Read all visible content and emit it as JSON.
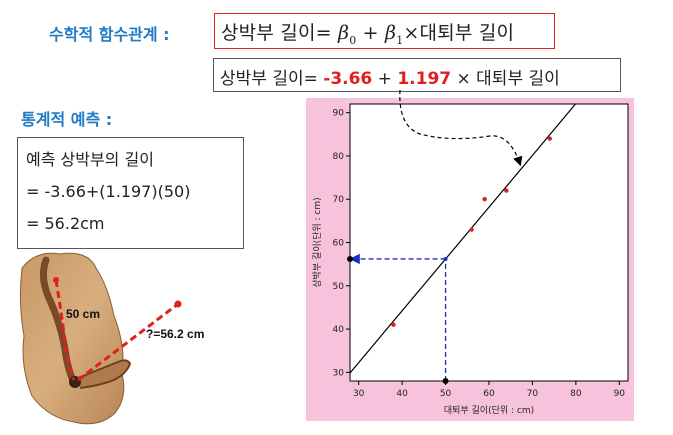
{
  "headings": {
    "functional": "수학적 함수관계 :",
    "statistical": "통계적 예측 :"
  },
  "formula": {
    "lhs": "상박부 길이",
    "eq": "=",
    "beta0": "β",
    "beta0_sub": "0",
    "plus": "+",
    "beta1": "β",
    "beta1_sub": "1",
    "times": "×",
    "rhs": "대퇴부 길이"
  },
  "estimate": {
    "lhs": "상박부 길이=",
    "intercept": "-3.66",
    "plus": "+",
    "slope": "1.197",
    "times": "×",
    "rhs": "대퇴부 길이"
  },
  "prediction": {
    "line1": "예측 상박부의 길이",
    "line2": "= -3.66+(1.197)(50)",
    "line3": "= 56.2cm"
  },
  "photo": {
    "femur_label": "50 cm",
    "humerus_label": "?=56.2 cm"
  },
  "colors": {
    "heading": "#1f7bc6",
    "highlight": "#e02020",
    "plot_bg": "#f7c2dc",
    "guide": "#1a2fbf"
  },
  "chart_data": {
    "type": "scatter",
    "xlabel": "대퇴부 길이(단위 : cm)",
    "ylabel": "상박부 길이(단위 : cm)",
    "xlim": [
      28,
      92
    ],
    "ylim": [
      28,
      92
    ],
    "xticks": [
      30,
      40,
      50,
      60,
      70,
      80,
      90
    ],
    "yticks": [
      30,
      40,
      50,
      60,
      70,
      80,
      90
    ],
    "points": [
      {
        "x": 38,
        "y": 41
      },
      {
        "x": 56,
        "y": 63
      },
      {
        "x": 59,
        "y": 70
      },
      {
        "x": 64,
        "y": 72
      },
      {
        "x": 74,
        "y": 84
      }
    ],
    "regression": {
      "intercept": -3.66,
      "slope": 1.197
    },
    "prediction": {
      "x": 50,
      "y": 56.2
    }
  }
}
